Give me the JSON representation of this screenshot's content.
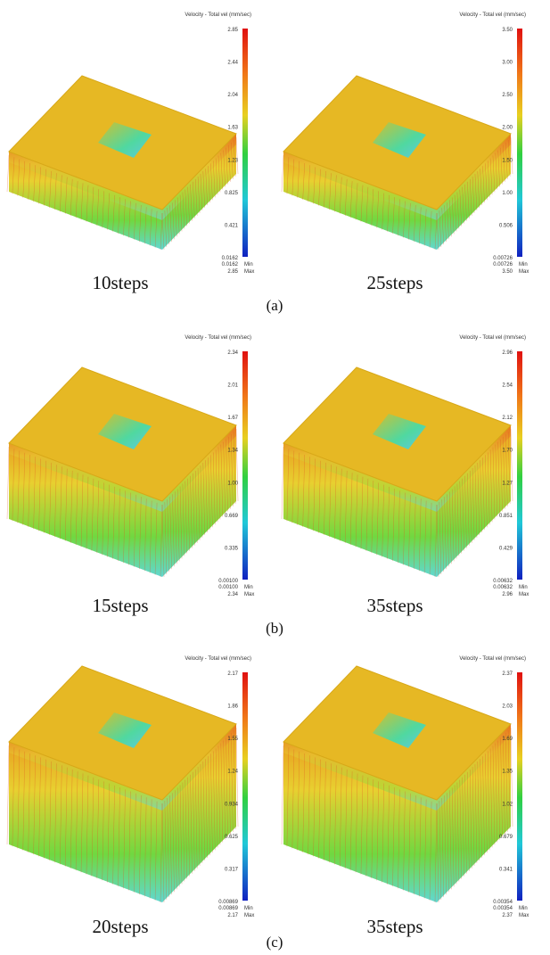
{
  "colorbar_title": "Velocity - Total vel (mm/sec)",
  "min_word": "Min",
  "max_word": "Max",
  "rows": [
    {
      "caption": "(a)",
      "panels": [
        {
          "ticks": [
            "2.85",
            "2.44",
            "2.04",
            "1.63",
            "1.23",
            "0.825",
            "0.421",
            "0.0162"
          ],
          "min": "0.0162",
          "max": "2.85",
          "step": "10steps"
        },
        {
          "ticks": [
            "3.50",
            "3.00",
            "2.50",
            "2.00",
            "1.50",
            "1.00",
            "0.506",
            "0.00726"
          ],
          "min": "0.00726",
          "max": "3.50",
          "step": "25steps"
        }
      ]
    },
    {
      "caption": "(b)",
      "panels": [
        {
          "ticks": [
            "2.34",
            "2.01",
            "1.67",
            "1.34",
            "1.00",
            "0.669",
            "0.335",
            "0.00100"
          ],
          "min": "0.00100",
          "max": "2.34",
          "step": "15steps"
        },
        {
          "ticks": [
            "2.96",
            "2.54",
            "2.12",
            "1.70",
            "1.27",
            "0.851",
            "0.429",
            "0.00632"
          ],
          "min": "0.00632",
          "max": "2.96",
          "step": "35steps"
        }
      ]
    },
    {
      "caption": "(c)",
      "panels": [
        {
          "ticks": [
            "2.17",
            "1.86",
            "1.55",
            "1.24",
            "0.934",
            "0.625",
            "0.317",
            "0.00869"
          ],
          "min": "0.00869",
          "max": "2.17",
          "step": "20steps"
        },
        {
          "ticks": [
            "2.37",
            "2.03",
            "1.69",
            "1.35",
            "1.02",
            "0.679",
            "0.341",
            "0.00354"
          ],
          "min": "0.00354",
          "max": "2.37",
          "step": "35steps"
        }
      ]
    }
  ]
}
